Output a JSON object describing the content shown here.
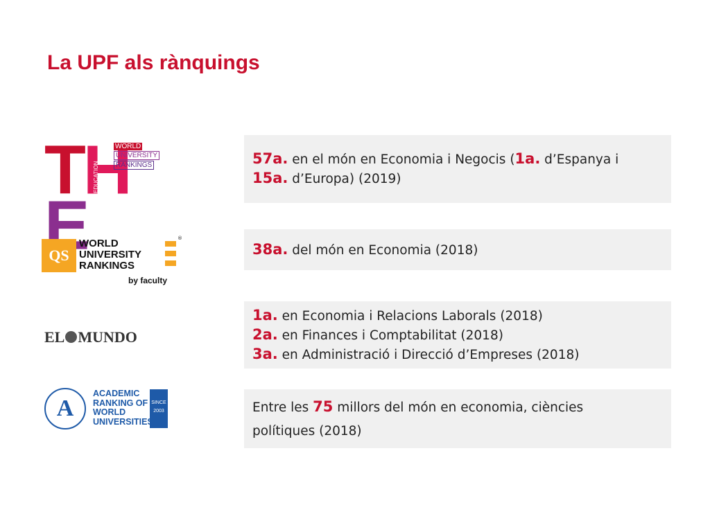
{
  "title": "La UPF als rànquings",
  "logos": {
    "the": {
      "letters": [
        "T",
        "H",
        "E"
      ],
      "side": [
        "TIMES",
        "HIGHER",
        "EDUCATION"
      ],
      "tag": [
        "WORLD",
        "UNIVERSITY",
        "RANKINGS"
      ]
    },
    "qs": {
      "box": "QS",
      "lines": [
        "WORLD",
        "UNIVERSITY",
        "RANKINGS"
      ],
      "by": "by faculty",
      "reg": "®"
    },
    "elmundo": {
      "left": "EL",
      "right": "MUNDO"
    },
    "arwu": {
      "lines": [
        "ACADEMIC",
        "RANKING OF",
        "WORLD",
        "UNIVERSITIES"
      ],
      "since": "SINCE",
      "year": "2003",
      "emblem": "A"
    }
  },
  "rankings": [
    {
      "lines": [
        [
          {
            "t": "57a.",
            "r": true
          },
          {
            "t": " en el món en Economia i Negocis ("
          },
          {
            "t": "1a.",
            "r": true
          },
          {
            "t": " d’Espanya i"
          }
        ],
        [
          {
            "t": "15a.",
            "r": true
          },
          {
            "t": " d’Europa) (2019)"
          }
        ]
      ]
    },
    {
      "lines": [
        [
          {
            "t": "38a.",
            "r": true
          },
          {
            "t": " del món en Economia (2018)"
          }
        ]
      ]
    },
    {
      "lines": [
        [
          {
            "t": "1a.",
            "r": true
          },
          {
            "t": " en Economia i Relacions Laborals (2018)"
          }
        ],
        [
          {
            "t": "2a.",
            "r": true
          },
          {
            "t": " en Finances i Comptabilitat (2018)"
          }
        ],
        [
          {
            "t": "3a.",
            "r": true
          },
          {
            "t": " en Administració i Direcció d’Empreses (2018)"
          }
        ]
      ]
    },
    {
      "lines": [
        [
          {
            "t": "Entre les "
          },
          {
            "t": "75",
            "r": true
          },
          {
            "t": " millors del món en economia, ciències"
          }
        ],
        [
          {
            "t": "polítiques (2018)"
          }
        ]
      ]
    }
  ],
  "colors": {
    "accent": "#c8102e",
    "box": "#f0f0f0",
    "qs": "#f5a623",
    "arwu": "#1e5aa8"
  }
}
